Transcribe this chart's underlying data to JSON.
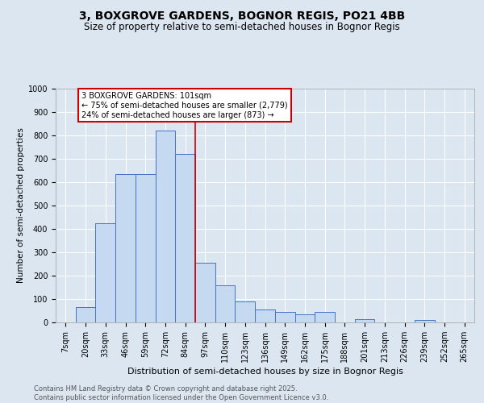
{
  "title": "3, BOXGROVE GARDENS, BOGNOR REGIS, PO21 4BB",
  "subtitle": "Size of property relative to semi-detached houses in Bognor Regis",
  "xlabel": "Distribution of semi-detached houses by size in Bognor Regis",
  "ylabel": "Number of semi-detached properties",
  "categories": [
    "7sqm",
    "20sqm",
    "33sqm",
    "46sqm",
    "59sqm",
    "72sqm",
    "84sqm",
    "97sqm",
    "110sqm",
    "123sqm",
    "136sqm",
    "149sqm",
    "162sqm",
    "175sqm",
    "188sqm",
    "201sqm",
    "213sqm",
    "226sqm",
    "239sqm",
    "252sqm",
    "265sqm"
  ],
  "values": [
    0,
    65,
    425,
    635,
    635,
    820,
    720,
    255,
    160,
    90,
    55,
    45,
    35,
    45,
    0,
    15,
    0,
    0,
    10,
    0,
    0
  ],
  "bar_color": "#c5d9f1",
  "bar_edge_color": "#4472c4",
  "background_color": "#dce6f1",
  "grid_color": "#ffffff",
  "redline_index": 7,
  "annotation_text": "3 BOXGROVE GARDENS: 101sqm\n← 75% of semi-detached houses are smaller (2,779)\n24% of semi-detached houses are larger (873) →",
  "annotation_box_facecolor": "#ffffff",
  "annotation_border_color": "#cc0000",
  "footer": "Contains HM Land Registry data © Crown copyright and database right 2025.\nContains public sector information licensed under the Open Government Licence v3.0.",
  "ylim_max": 1000,
  "ytick_step": 100,
  "title_fontsize": 10,
  "subtitle_fontsize": 8.5,
  "xlabel_fontsize": 8,
  "ylabel_fontsize": 7.5,
  "tick_fontsize": 7,
  "annot_fontsize": 7,
  "footer_fontsize": 6
}
